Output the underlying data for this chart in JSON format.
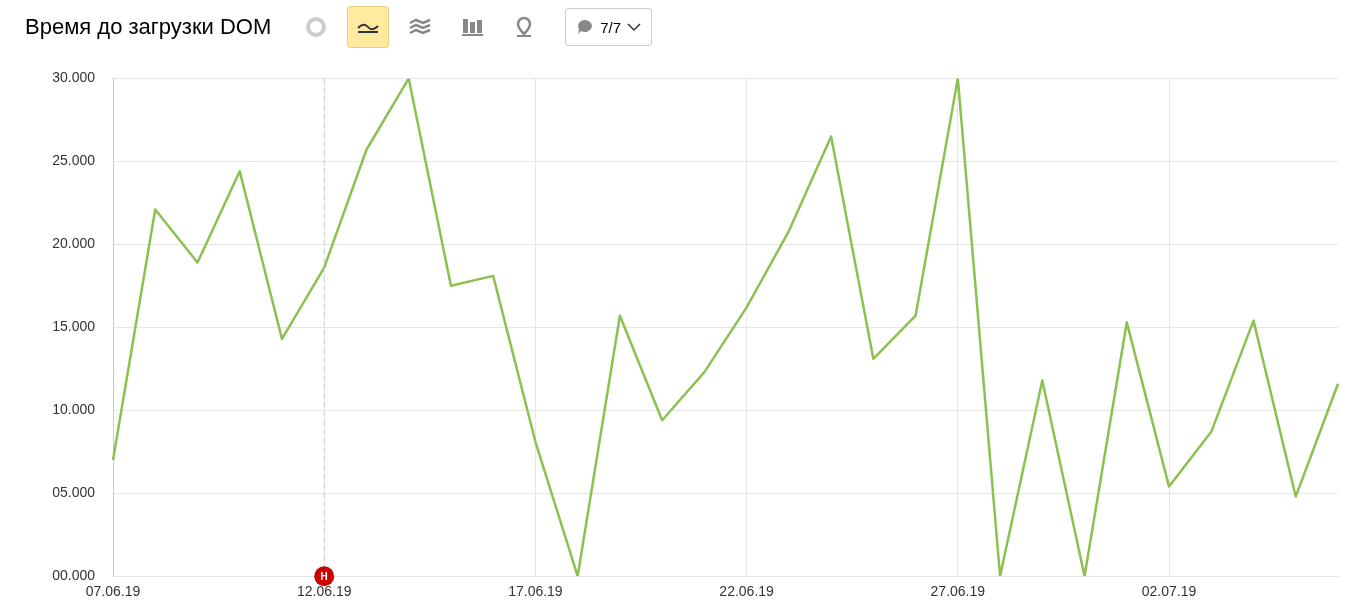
{
  "chart_data": {
    "type": "line",
    "title": "Время до загрузки DOM",
    "categories": [
      "07.06.19",
      null,
      null,
      null,
      null,
      "12.06.19",
      null,
      null,
      null,
      null,
      "17.06.19",
      null,
      null,
      null,
      null,
      "22.06.19",
      null,
      null,
      null,
      null,
      "27.06.19",
      null,
      null,
      null,
      null,
      "02.07.19",
      null,
      null,
      null,
      null
    ],
    "series": [
      {
        "color": "#8cc152",
        "values": [
          7.0,
          22.1,
          18.9,
          24.4,
          14.3,
          18.6,
          25.7,
          30,
          17.5,
          18.1,
          8.1,
          0,
          15.7,
          9.4,
          12.3,
          16.2,
          20.8,
          26.5,
          13.1,
          15.7,
          30,
          0,
          11.8,
          0,
          15.3,
          5.4,
          8.7,
          15.4,
          4.8,
          11.6
        ]
      }
    ],
    "ylim": [
      0,
      30
    ],
    "yticks": [
      {
        "value": 0,
        "label": "00.000"
      },
      {
        "value": 5,
        "label": "05.000"
      },
      {
        "value": 10,
        "label": "10.000"
      },
      {
        "value": 15,
        "label": "15.000"
      },
      {
        "value": 20,
        "label": "20.000"
      },
      {
        "value": 25,
        "label": "25.000"
      },
      {
        "value": 30,
        "label": "30.000"
      }
    ],
    "grid": true,
    "legend": false,
    "marker": "none",
    "line_style": "solid",
    "ref_lines": [
      {
        "axis": "x",
        "value": "12.06.19",
        "color": "#cccccc",
        "line_style": "dashed"
      }
    ],
    "annotations": [
      {
        "text": "Н",
        "x": "12.06.19",
        "y": 0
      },
      "7/7"
    ]
  }
}
